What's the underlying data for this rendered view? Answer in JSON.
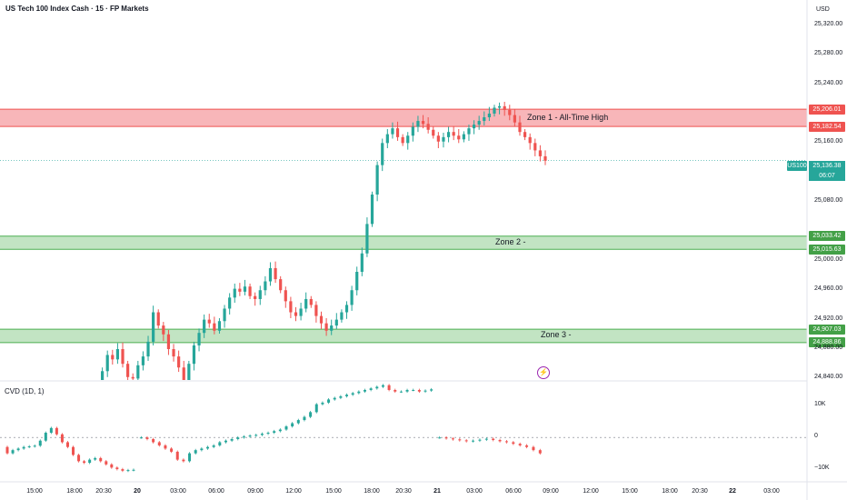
{
  "title": "US Tech 100 Index Cash · 15 · FP Markets",
  "currency": "USD",
  "cvd_label": "CVD (1D, 1)",
  "symbol": "US100",
  "last_price": "25,136.38",
  "countdown": "06:07",
  "colors": {
    "up": "#26a69a",
    "down": "#ef5350",
    "zone_red": "#f7a9ad",
    "zone_green": "#b7dfb9",
    "accent_purple": "#9c27b0"
  },
  "zones": [
    {
      "label": "Zone 1 - All-Time High",
      "top": 25206.01,
      "bottom": 25182.54,
      "color": "red"
    },
    {
      "label": "Zone 2 -",
      "top": 25033.42,
      "bottom": 25015.63,
      "color": "green"
    },
    {
      "label": "Zone 3 -",
      "top": 24907.03,
      "bottom": 24888.86,
      "color": "green"
    }
  ],
  "zone_tags": [
    "25,206.01",
    "25,182.54",
    "25,033.42",
    "25,015.63",
    "24,907.03",
    "24,888.86"
  ],
  "chart_data": {
    "type": "candlestick",
    "title": "US Tech 100 Index Cash · 15 · FP Markets",
    "y_ticks": [
      "25,320.00",
      "25,280.00",
      "25,240.00",
      "25,160.00",
      "25,080.00",
      "25,000.00",
      "24,960.00",
      "24,920.00",
      "24,880.00",
      "24,840.00"
    ],
    "y_tick_values": [
      25320,
      25280,
      25240,
      25160,
      25080,
      25000,
      24960,
      24920,
      24880,
      24840
    ],
    "x_ticks": [
      "15:00",
      "18:00",
      "20:30",
      "20",
      "03:00",
      "06:00",
      "09:00",
      "12:00",
      "15:00",
      "18:00",
      "20:30",
      "21",
      "03:00",
      "06:00",
      "09:00",
      "12:00",
      "15:00",
      "18:00",
      "20:30",
      "22",
      "03:00"
    ],
    "ylim": [
      24838,
      25342
    ],
    "price_path": [
      24835,
      24850,
      24872,
      24866,
      24880,
      24860,
      24842,
      24840,
      24858,
      24870,
      24890,
      24930,
      24912,
      24900,
      24880,
      24870,
      24855,
      24838,
      24860,
      24885,
      24902,
      24920,
      24915,
      24905,
      24918,
      24935,
      24950,
      24962,
      24958,
      24965,
      24952,
      24948,
      24960,
      24972,
      24990,
      24975,
      24960,
      24945,
      24930,
      24925,
      24935,
      24948,
      24940,
      24925,
      24915,
      24905,
      24912,
      24920,
      24930,
      24940,
      24960,
      24985,
      25010,
      25050,
      25090,
      25130,
      25160,
      25172,
      25180,
      25168,
      25160,
      25170,
      25182,
      25190,
      25186,
      25178,
      25170,
      25162,
      25168,
      25175,
      25170,
      25165,
      25172,
      25180,
      25185,
      25190,
      25195,
      25200,
      25208,
      25210,
      25205,
      25198,
      25188,
      25175,
      25168,
      25160,
      25150,
      25142,
      25136
    ],
    "cvd_y_ticks": [
      "10K",
      "0",
      "−10K"
    ],
    "cvd_y_tick_values": [
      10000,
      0,
      -10000
    ],
    "cvd_ylim": [
      -14000,
      17000
    ],
    "cvd_segments": [
      {
        "name": "day1",
        "values": [
          -5000,
          -4000,
          -3500,
          -3000,
          -2800,
          -2600,
          -1000,
          1500,
          3000,
          1000,
          -1500,
          -3000,
          -5500,
          -7500,
          -8000,
          -7000,
          -6500,
          -7500,
          -8500,
          -9500,
          -10000,
          -10500,
          -10300,
          -10200
        ]
      },
      {
        "name": "day2",
        "values": [
          0,
          -500,
          -1500,
          -2500,
          -3500,
          -4500,
          -7000,
          -7500,
          -5000,
          -4000,
          -3500,
          -3000,
          -2500,
          -1500,
          -1000,
          -500,
          0,
          300,
          600,
          800,
          1200,
          1500,
          2000,
          2500,
          3500,
          4500,
          5500,
          6500,
          8000,
          10500,
          11000,
          12000,
          12500,
          13000,
          13500,
          14000,
          14500,
          15000,
          15500,
          16000,
          16500,
          15000,
          14500,
          14500,
          15000,
          15000,
          14500,
          14800,
          15200
        ]
      },
      {
        "name": "day3",
        "values": [
          0,
          -300,
          -600,
          -900,
          -1200,
          -1000,
          -700,
          -400,
          -800,
          -1200,
          -1500,
          -2000,
          -2500,
          -3000,
          -4000,
          -5000
        ]
      }
    ]
  }
}
